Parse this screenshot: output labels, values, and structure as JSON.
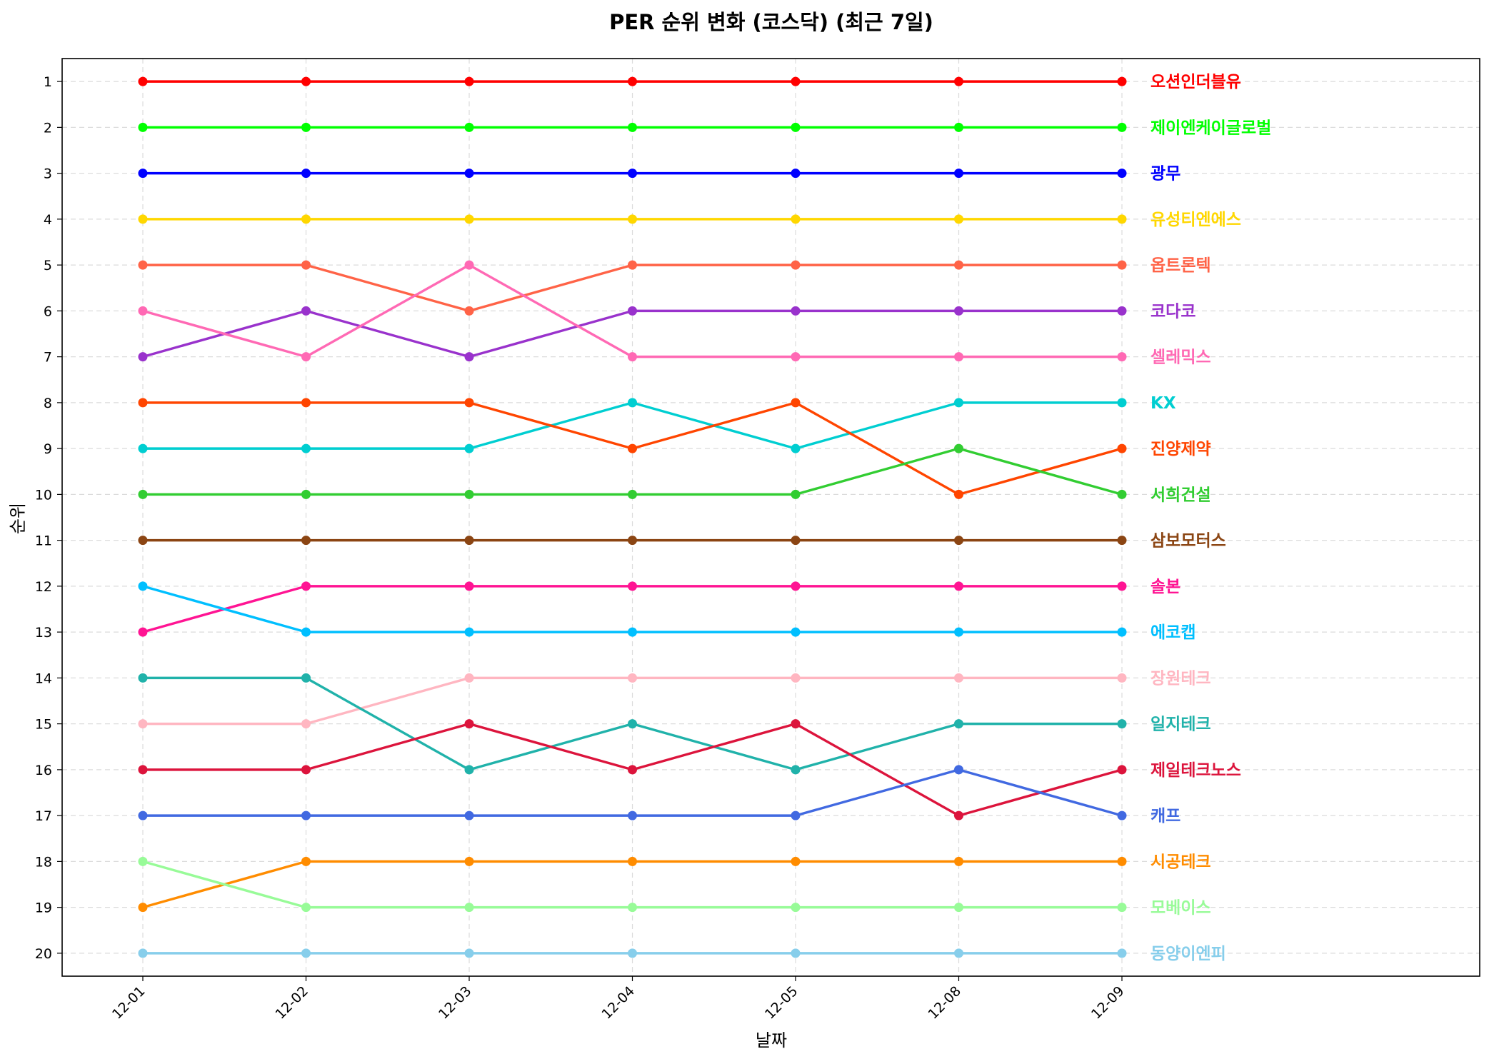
{
  "chart_data": {
    "type": "line",
    "title": "PER 순위 변화 (코스닥) (최근 7일)",
    "xlabel": "날짜",
    "ylabel": "순위",
    "categories": [
      "12-01",
      "12-02",
      "12-03",
      "12-04",
      "12-05",
      "12-08",
      "12-09"
    ],
    "yticks": [
      "1",
      "2",
      "3",
      "4",
      "5",
      "6",
      "7",
      "8",
      "9",
      "10",
      "11",
      "12",
      "13",
      "14",
      "15",
      "16",
      "17",
      "18",
      "19",
      "20"
    ],
    "ylim": [
      20.5,
      0.5
    ],
    "y_inverted": true,
    "grid": true,
    "series": [
      {
        "name": "오션인더블유",
        "color": "#ff0000",
        "values": [
          1,
          1,
          1,
          1,
          1,
          1,
          1
        ]
      },
      {
        "name": "제이엔케이글로벌",
        "color": "#00ff00",
        "values": [
          2,
          2,
          2,
          2,
          2,
          2,
          2
        ]
      },
      {
        "name": "광무",
        "color": "#0000ff",
        "values": [
          3,
          3,
          3,
          3,
          3,
          3,
          3
        ]
      },
      {
        "name": "유성티엔에스",
        "color": "#ffd700",
        "values": [
          4,
          4,
          4,
          4,
          4,
          4,
          4
        ]
      },
      {
        "name": "옵트론텍",
        "color": "#ff6347",
        "values": [
          5,
          5,
          6,
          5,
          5,
          5,
          5
        ]
      },
      {
        "name": "코다코",
        "color": "#9932cc",
        "values": [
          7,
          6,
          7,
          6,
          6,
          6,
          6
        ]
      },
      {
        "name": "셀레믹스",
        "color": "#ff69b4",
        "values": [
          6,
          7,
          5,
          7,
          7,
          7,
          7
        ]
      },
      {
        "name": "KX",
        "color": "#00ced1",
        "values": [
          9,
          9,
          9,
          8,
          9,
          8,
          8
        ]
      },
      {
        "name": "진양제약",
        "color": "#ff4500",
        "values": [
          8,
          8,
          8,
          9,
          8,
          10,
          9
        ]
      },
      {
        "name": "서희건설",
        "color": "#32cd32",
        "values": [
          10,
          10,
          10,
          10,
          10,
          9,
          10
        ]
      },
      {
        "name": "삼보모터스",
        "color": "#8b4513",
        "values": [
          11,
          11,
          11,
          11,
          11,
          11,
          11
        ]
      },
      {
        "name": "솔본",
        "color": "#ff1493",
        "values": [
          13,
          12,
          12,
          12,
          12,
          12,
          12
        ]
      },
      {
        "name": "에코캡",
        "color": "#00bfff",
        "values": [
          12,
          13,
          13,
          13,
          13,
          13,
          13
        ]
      },
      {
        "name": "장원테크",
        "color": "#ffb6c1",
        "values": [
          15,
          15,
          14,
          14,
          14,
          14,
          14
        ]
      },
      {
        "name": "일지테크",
        "color": "#20b2aa",
        "values": [
          14,
          14,
          16,
          15,
          16,
          15,
          15
        ]
      },
      {
        "name": "제일테크노스",
        "color": "#dc143c",
        "values": [
          16,
          16,
          15,
          16,
          15,
          17,
          16
        ]
      },
      {
        "name": "캐프",
        "color": "#4169e1",
        "values": [
          17,
          17,
          17,
          17,
          17,
          16,
          17
        ]
      },
      {
        "name": "시공테크",
        "color": "#ff8c00",
        "values": [
          19,
          18,
          18,
          18,
          18,
          18,
          18
        ]
      },
      {
        "name": "모베이스",
        "color": "#98fb98",
        "values": [
          18,
          19,
          19,
          19,
          19,
          19,
          19
        ]
      },
      {
        "name": "동양이엔피",
        "color": "#87ceeb",
        "values": [
          20,
          20,
          20,
          20,
          20,
          20,
          20
        ]
      }
    ]
  }
}
